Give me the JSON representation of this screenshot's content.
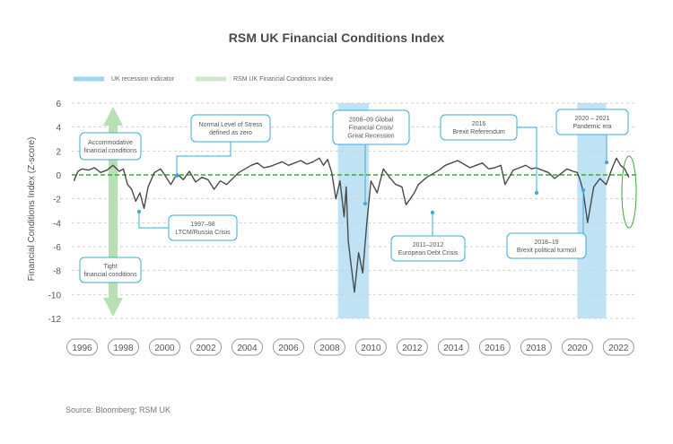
{
  "title": "RSM UK Financial Conditions Index",
  "source": "Source: Bloomberg; RSM UK",
  "colors": {
    "recession": "#bfe3f5",
    "index_line": "#4a4a4a",
    "zero_line": "#3aa935",
    "callout_border": "#3aaed8",
    "arrow": "#b7e0b5"
  },
  "chart_data": {
    "type": "line",
    "title": "RSM UK Financial Conditions Index",
    "xlabel": "",
    "ylabel": "Financial Conditions Index (Z-score)",
    "xlim": [
      1995.5,
      2022.9
    ],
    "ylim": [
      -12,
      6
    ],
    "yticks": [
      6,
      4,
      2,
      0,
      -2,
      -4,
      -6,
      -8,
      -10,
      -12
    ],
    "xticks": [
      "1996",
      "1998",
      "2000",
      "2002",
      "2004",
      "2006",
      "2008",
      "2010",
      "2012",
      "2014",
      "2016",
      "2018",
      "2020",
      "2022"
    ],
    "legend": [
      "UK recession indicator",
      "RSM UK Financial Conditions Index"
    ],
    "legend_position": "top-left",
    "grid": "horizontal dashed",
    "recession_periods": [
      [
        2008.4,
        2009.9
      ],
      [
        2020.0,
        2021.4
      ]
    ],
    "series": [
      {
        "name": "RSM UK Financial Conditions Index",
        "x": [
          1995.6,
          1995.8,
          1996.0,
          1996.3,
          1996.6,
          1996.9,
          1997.2,
          1997.5,
          1997.8,
          1998.0,
          1998.2,
          1998.4,
          1998.6,
          1998.8,
          1999.0,
          1999.2,
          1999.5,
          1999.8,
          2000.0,
          2000.3,
          2000.6,
          2000.9,
          2001.2,
          2001.5,
          2001.8,
          2002.1,
          2002.4,
          2002.7,
          2003.0,
          2003.3,
          2003.6,
          2003.9,
          2004.2,
          2004.5,
          2004.8,
          2005.1,
          2005.4,
          2005.7,
          2006.0,
          2006.3,
          2006.6,
          2006.9,
          2007.2,
          2007.5,
          2007.7,
          2007.9,
          2008.1,
          2008.3,
          2008.5,
          2008.7,
          2008.8,
          2008.9,
          2009.0,
          2009.2,
          2009.4,
          2009.6,
          2009.8,
          2010.0,
          2010.3,
          2010.6,
          2010.9,
          2011.2,
          2011.5,
          2011.7,
          2011.9,
          2012.1,
          2012.3,
          2012.5,
          2012.7,
          2013.0,
          2013.3,
          2013.6,
          2013.9,
          2014.2,
          2014.5,
          2014.8,
          2015.1,
          2015.4,
          2015.7,
          2016.0,
          2016.3,
          2016.5,
          2016.7,
          2016.9,
          2017.2,
          2017.5,
          2017.8,
          2018.0,
          2018.3,
          2018.6,
          2018.9,
          2019.2,
          2019.5,
          2019.8,
          2020.0,
          2020.15,
          2020.3,
          2020.5,
          2020.8,
          2021.1,
          2021.4,
          2021.7,
          2021.9,
          2022.1,
          2022.3,
          2022.5
        ],
        "values": [
          -0.5,
          0.3,
          0.5,
          0.4,
          0.6,
          0.2,
          0.4,
          0.8,
          0.3,
          0.5,
          -0.8,
          -1.2,
          -2.2,
          -1.5,
          -2.8,
          -1.0,
          0.2,
          0.5,
          0.0,
          -0.8,
          0.1,
          -0.4,
          0.3,
          -0.6,
          -0.2,
          -0.4,
          -1.2,
          -0.5,
          -0.8,
          -0.3,
          0.2,
          0.5,
          0.8,
          1.0,
          0.6,
          0.7,
          0.9,
          1.1,
          0.8,
          1.0,
          1.2,
          0.9,
          1.1,
          1.4,
          0.8,
          1.3,
          0.2,
          -2.0,
          -0.5,
          -3.5,
          -1.0,
          -5.5,
          -7.0,
          -9.8,
          -6.5,
          -8.2,
          -4.0,
          -0.5,
          -1.5,
          0.5,
          -0.2,
          -0.8,
          -1.0,
          -2.5,
          -2.0,
          -1.5,
          -0.8,
          -0.5,
          -0.2,
          0.1,
          0.4,
          0.8,
          1.0,
          1.2,
          0.9,
          0.6,
          0.8,
          1.0,
          0.5,
          0.6,
          0.8,
          -0.8,
          -0.2,
          0.4,
          0.6,
          0.8,
          0.5,
          0.6,
          0.4,
          0.2,
          -0.3,
          0.1,
          0.5,
          0.3,
          0.2,
          -0.5,
          -1.5,
          -4.0,
          -1.0,
          -0.3,
          -0.8,
          0.6,
          1.4,
          0.8,
          0.5,
          -0.2
        ]
      }
    ],
    "annotations": [
      {
        "text": [
          "Accommodative",
          "financial conditions"
        ]
      },
      {
        "text": [
          "Tight",
          "financial conditions"
        ]
      },
      {
        "text": [
          "Normal Level of Stress",
          "defined as zero"
        ]
      },
      {
        "text": [
          "1997–98",
          "LTCM/Russia Crisis"
        ]
      },
      {
        "text": [
          "2008–09 Global",
          "Financial Crisis/",
          "Great Recession"
        ]
      },
      {
        "text": [
          "2011–2012",
          "European Debt Crisis"
        ]
      },
      {
        "text": [
          "2016",
          "Brexit Referendum"
        ]
      },
      {
        "text": [
          "2018–19",
          "Brexit political turmoil"
        ]
      },
      {
        "text": [
          "2020 – 2021",
          "Pandemic era"
        ]
      }
    ]
  }
}
